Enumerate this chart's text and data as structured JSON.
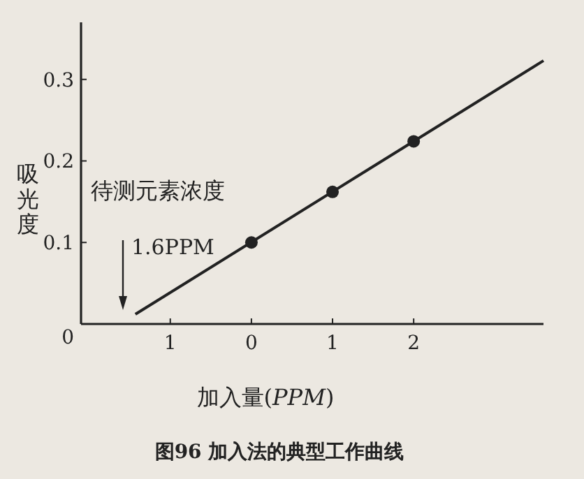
{
  "chart_data": {
    "type": "scatter",
    "xlabel": "加入量(*PPM*)",
    "ylabel": "吸光度",
    "xlim": [
      -2.1,
      3.6
    ],
    "ylim": [
      0,
      0.37
    ],
    "xticks": [
      {
        "value": -1,
        "label": "1"
      },
      {
        "value": 0,
        "label": "0"
      },
      {
        "value": 1,
        "label": "1"
      },
      {
        "value": 2,
        "label": "2"
      }
    ],
    "yticks": [
      0,
      0.1,
      0.2,
      0.3
    ],
    "series": [
      {
        "type": "line",
        "marker": "none",
        "color": "#222222",
        "x": [
          -1.43,
          3.6
        ],
        "values": [
          0.012,
          0.323
        ]
      },
      {
        "marker": "circle",
        "color": "#222222",
        "x": [
          0,
          1,
          2
        ],
        "values": [
          0.1,
          0.162,
          0.224
        ]
      }
    ],
    "annotations": [
      "待测元素浓度",
      "1.6PPM",
      "图96  加入法的典型工作曲线"
    ]
  }
}
